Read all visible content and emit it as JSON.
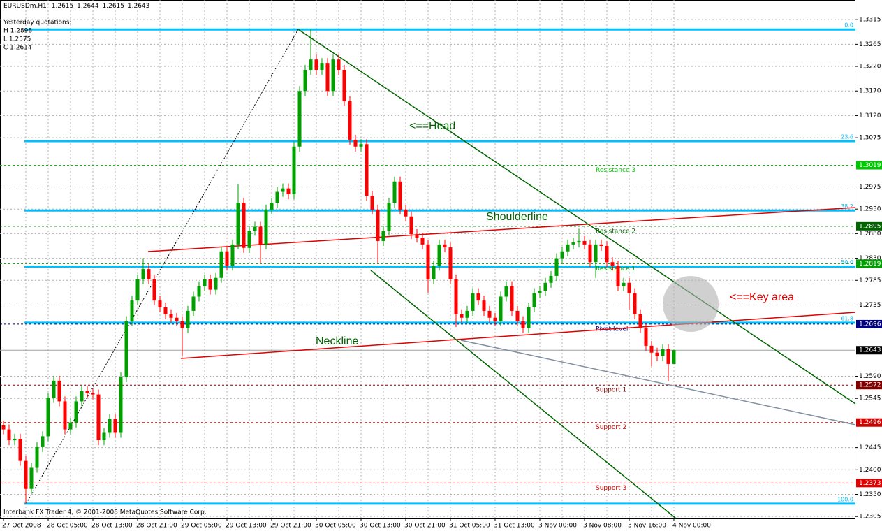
{
  "chart_data": {
    "type": "candlestick",
    "symbol": "EURUSDm,H1",
    "info": [
      "Yesterday quotations:",
      "H 1.2898",
      "L 1.2575",
      "C 1.2614"
    ],
    "footer": "Interbank FX Trader 4, © 2001-2008 MetaQuotes Software Corp.",
    "annotations": [
      "<==Head",
      "Shoulderline",
      "Neckline",
      "<==Key area"
    ],
    "categories": [
      "27 Oct 2008",
      null,
      null,
      null,
      null,
      null,
      null,
      null,
      "28 Oct 05:00",
      null,
      null,
      null,
      null,
      null,
      null,
      null,
      "28 Oct 13:00",
      null,
      null,
      null,
      null,
      null,
      null,
      null,
      "28 Oct 21:00",
      null,
      null,
      null,
      null,
      null,
      null,
      null,
      "29 Oct 05:00",
      null,
      null,
      null,
      null,
      null,
      null,
      null,
      "29 Oct 13:00",
      null,
      null,
      null,
      null,
      null,
      null,
      null,
      "29 Oct 21:00",
      null,
      null,
      null,
      null,
      null,
      null,
      null,
      "30 Oct 05:00",
      null,
      null,
      null,
      null,
      null,
      null,
      null,
      "30 Oct 13:00",
      null,
      null,
      null,
      null,
      null,
      null,
      null,
      "30 Oct 21:00",
      null,
      null,
      null,
      null,
      null,
      null,
      null,
      "31 Oct 05:00",
      null,
      null,
      null,
      null,
      null,
      null,
      null,
      "31 Oct 13:00",
      null,
      null,
      null,
      null,
      null,
      null,
      null,
      "3 Nov 00:00",
      null,
      null,
      null,
      null,
      null,
      null,
      null,
      "3 Nov 08:00",
      null,
      null,
      null,
      null,
      null,
      null,
      null,
      "3 Nov 16:00",
      null,
      null,
      null,
      null,
      null,
      null,
      null,
      "4 Nov 00:00"
    ],
    "open": [
      1.249,
      1.2482,
      1.246,
      1.2463,
      1.2418,
      1.2361,
      1.2404,
      1.2446,
      1.2468,
      1.2546,
      1.2581,
      1.2539,
      1.2482,
      1.2496,
      1.2539,
      1.256,
      1.2556,
      1.2553,
      1.246,
      1.2475,
      1.2503,
      1.2475,
      1.2588,
      1.2702,
      1.2744,
      1.2787,
      1.2808,
      1.2787,
      1.2744,
      1.273,
      1.2716,
      1.2709,
      1.2702,
      1.2688,
      1.2723,
      1.2752,
      1.2773,
      1.2787,
      1.2766,
      1.279,
      1.2844,
      1.2815,
      1.2858,
      1.2943,
      1.2851,
      1.2886,
      1.2894,
      1.2858,
      1.2929,
      1.2943,
      1.2965,
      1.2972,
      1.296,
      1.3057,
      1.317,
      1.3213,
      1.3234,
      1.3213,
      1.3227,
      1.317,
      1.3234,
      1.3213,
      1.3149,
      1.3071,
      1.3057,
      1.3062,
      1.2957,
      1.2929,
      1.2865,
      1.2886,
      1.2943,
      1.2986,
      1.2929,
      1.2915,
      1.2879,
      1.2872,
      1.2858,
      1.2787,
      1.2815,
      1.2858,
      1.2852,
      1.2787,
      1.2716,
      1.2709,
      1.2723,
      1.2759,
      1.2744,
      1.2723,
      1.2709,
      1.2702,
      1.2752,
      1.2773,
      1.2723,
      1.2702,
      1.2688,
      1.273,
      1.2759,
      1.2764,
      1.278,
      1.2794,
      1.283,
      1.2844,
      1.2858,
      1.2862,
      1.2865,
      1.2858,
      1.2822,
      1.2858,
      1.2855,
      1.2822,
      1.2815,
      1.2773,
      1.278,
      1.2759,
      1.2716,
      1.2688,
      1.2652,
      1.2638,
      1.2631,
      1.2645,
      1.2615
    ],
    "high": [
      1.25,
      1.2492,
      1.2473,
      1.2473,
      1.2428,
      1.2414,
      1.2456,
      1.2478,
      1.2556,
      1.2591,
      1.2591,
      1.2549,
      1.2506,
      1.2549,
      1.257,
      1.257,
      1.2566,
      1.2563,
      1.2485,
      1.2513,
      1.2513,
      1.2598,
      1.2712,
      1.2754,
      1.2797,
      1.283,
      1.2818,
      1.2797,
      1.2754,
      1.274,
      1.2726,
      1.2719,
      1.2712,
      1.2733,
      1.2762,
      1.2783,
      1.2797,
      1.2797,
      1.28,
      1.2854,
      1.2854,
      1.2868,
      1.298,
      1.2953,
      1.2896,
      1.2904,
      1.2904,
      1.2939,
      1.2953,
      1.2975,
      1.2982,
      1.2982,
      1.3067,
      1.318,
      1.3223,
      1.3295,
      1.3244,
      1.3237,
      1.3237,
      1.3244,
      1.3244,
      1.3223,
      1.3159,
      1.3081,
      1.3072,
      1.3072,
      1.2967,
      1.2939,
      1.2896,
      1.2953,
      1.2996,
      1.2996,
      1.2939,
      1.2925,
      1.2889,
      1.2882,
      1.2868,
      1.2825,
      1.2868,
      1.2868,
      1.2862,
      1.2797,
      1.2726,
      1.2733,
      1.2769,
      1.2769,
      1.2754,
      1.2733,
      1.2719,
      1.2762,
      1.2783,
      1.2783,
      1.2733,
      1.2712,
      1.274,
      1.2769,
      1.2774,
      1.279,
      1.2804,
      1.284,
      1.2854,
      1.2868,
      1.2872,
      1.289,
      1.2875,
      1.2868,
      1.2868,
      1.2868,
      1.2865,
      1.2832,
      1.2825,
      1.279,
      1.279,
      1.2769,
      1.2726,
      1.2698,
      1.2662,
      1.2648,
      1.2655,
      1.2655,
      1.2644
    ],
    "low": [
      1.2472,
      1.245,
      1.245,
      1.2408,
      1.2331,
      1.2351,
      1.2394,
      1.2436,
      1.2458,
      1.2536,
      1.2529,
      1.2472,
      1.2472,
      1.2486,
      1.2529,
      1.2546,
      1.2543,
      1.245,
      1.245,
      1.2465,
      1.2465,
      1.2465,
      1.2578,
      1.2692,
      1.2734,
      1.2777,
      1.2777,
      1.2734,
      1.272,
      1.2706,
      1.2699,
      1.2692,
      1.2631,
      1.2678,
      1.2713,
      1.2742,
      1.2763,
      1.2756,
      1.2756,
      1.278,
      1.2805,
      1.2805,
      1.2848,
      1.2841,
      1.2841,
      1.2876,
      1.282,
      1.2848,
      1.2919,
      1.2933,
      1.2955,
      1.295,
      1.295,
      1.3047,
      1.316,
      1.3203,
      1.3203,
      1.3203,
      1.316,
      1.316,
      1.3203,
      1.3139,
      1.3061,
      1.3047,
      1.3047,
      1.2947,
      1.2919,
      1.282,
      1.2855,
      1.2876,
      1.2933,
      1.2919,
      1.2905,
      1.2869,
      1.2862,
      1.2848,
      1.276,
      1.2777,
      1.2805,
      1.2842,
      1.2777,
      1.269,
      1.2699,
      1.2699,
      1.2713,
      1.2734,
      1.2713,
      1.2699,
      1.2692,
      1.2692,
      1.2742,
      1.2713,
      1.2692,
      1.2678,
      1.2678,
      1.272,
      1.2749,
      1.2754,
      1.277,
      1.2784,
      1.282,
      1.2834,
      1.2848,
      1.2852,
      1.2848,
      1.2812,
      1.279,
      1.2845,
      1.2812,
      1.2805,
      1.2763,
      1.2763,
      1.2725,
      1.2706,
      1.2678,
      1.2642,
      1.261,
      1.2621,
      1.2621,
      1.258,
      1.2615
    ],
    "close": [
      1.2482,
      1.246,
      1.2463,
      1.2418,
      1.2361,
      1.2404,
      1.2446,
      1.2468,
      1.2546,
      1.2581,
      1.2539,
      1.2482,
      1.2496,
      1.2539,
      1.256,
      1.2556,
      1.2553,
      1.246,
      1.2475,
      1.2503,
      1.2475,
      1.2588,
      1.2702,
      1.2744,
      1.2787,
      1.2808,
      1.2787,
      1.2744,
      1.273,
      1.2716,
      1.2709,
      1.2702,
      1.2688,
      1.2723,
      1.2752,
      1.2773,
      1.2787,
      1.2766,
      1.279,
      1.2844,
      1.2815,
      1.2858,
      1.2943,
      1.2851,
      1.2886,
      1.2894,
      1.2858,
      1.2929,
      1.2943,
      1.2965,
      1.2972,
      1.296,
      1.3057,
      1.317,
      1.3213,
      1.3234,
      1.3213,
      1.3227,
      1.317,
      1.3234,
      1.3213,
      1.3149,
      1.3071,
      1.3057,
      1.3062,
      1.2957,
      1.2929,
      1.2865,
      1.2886,
      1.2943,
      1.2986,
      1.2929,
      1.2915,
      1.2879,
      1.2872,
      1.2858,
      1.2787,
      1.2815,
      1.2858,
      1.2852,
      1.2787,
      1.2716,
      1.2709,
      1.2723,
      1.2759,
      1.2744,
      1.2723,
      1.2709,
      1.2702,
      1.2752,
      1.2773,
      1.2723,
      1.2702,
      1.2688,
      1.273,
      1.2759,
      1.2764,
      1.278,
      1.2794,
      1.283,
      1.2844,
      1.2858,
      1.2862,
      1.2865,
      1.2858,
      1.2822,
      1.2858,
      1.2855,
      1.2822,
      1.2815,
      1.2773,
      1.278,
      1.2759,
      1.2716,
      1.2688,
      1.2652,
      1.2638,
      1.2631,
      1.2645,
      1.2615,
      1.2643
    ],
    "colors": {
      "up": "#00a000",
      "down": "#ff0000",
      "fib": "#00bfff",
      "current": "#000000"
    },
    "ylim": [
      1.2301,
      1.3355
    ],
    "yticks": [
      1.3315,
      1.3265,
      {
        "value": 1.322,
        "label": "1.3220"
      },
      {
        "value": 1.317,
        "label": "1.3170"
      },
      {
        "value": 1.312,
        "label": "1.3120"
      },
      1.3075,
      1.2975,
      {
        "value": 1.293,
        "label": "1.2930"
      },
      {
        "value": 1.288,
        "label": "1.2880"
      },
      {
        "value": 1.283,
        "label": "1.2830"
      },
      1.2785,
      1.2735,
      {
        "value": 1.259,
        "label": "1.2590"
      },
      1.2545,
      1.2445,
      {
        "value": 1.24,
        "label": "1.2400"
      },
      {
        "value": 1.235,
        "label": "1.2350"
      },
      1.2305
    ],
    "grid": true,
    "fib_levels": [
      {
        "label": "0.0",
        "value": 1.3295
      },
      {
        "label": "23.6",
        "value": 1.3068
      },
      {
        "label": "38.2",
        "value": 1.2927
      },
      {
        "label": "50.0",
        "value": 1.2813
      },
      {
        "label": "61.8",
        "value": 1.2699
      },
      {
        "label": "100.0",
        "value": 1.2331
      }
    ],
    "pivots": [
      {
        "name": "Resistance 3",
        "value": 1.3019,
        "color": "#00c800"
      },
      {
        "name": "Resistance 2",
        "value": 1.2895,
        "color": "#006400"
      },
      {
        "name": "Resistance 1",
        "value": 1.2819,
        "color": "#00a000"
      },
      {
        "name": "Pivot level",
        "value": 1.2696,
        "color": "#000080"
      },
      {
        "name": "Support 1",
        "value": 1.2572,
        "color": "#800000"
      },
      {
        "name": "Support 2",
        "value": 1.2496,
        "color": "#d00000"
      },
      {
        "name": "Support 3",
        "value": 1.2373,
        "color": "#e00000"
      }
    ]
  }
}
